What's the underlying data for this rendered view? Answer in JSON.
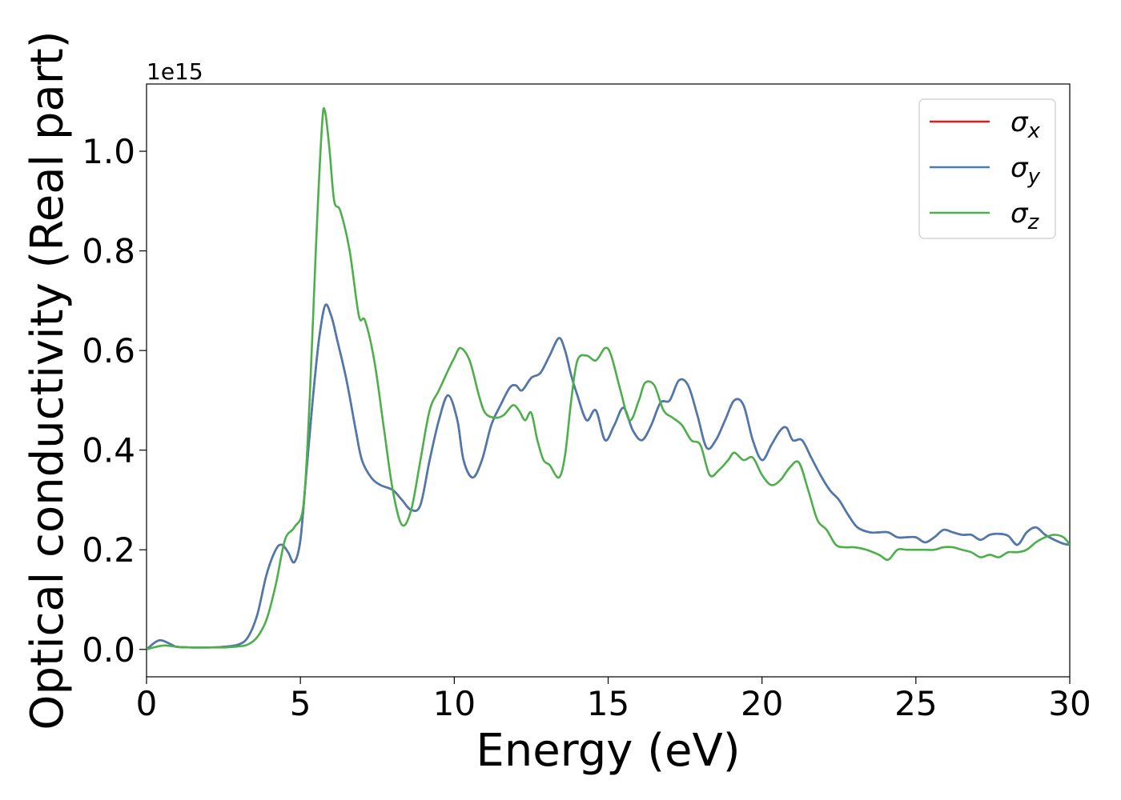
{
  "chart_data": {
    "type": "line",
    "title": "",
    "xlabel": "Energy (eV)",
    "ylabel": "Optical conductivity (Real part)",
    "y_offset_label": "1e15",
    "xlim": [
      0,
      30
    ],
    "ylim": [
      -0.055,
      1.135
    ],
    "x_ticks": [
      0,
      5,
      10,
      15,
      20,
      25,
      30
    ],
    "x_tick_labels": [
      "0",
      "5",
      "10",
      "15",
      "20",
      "25",
      "30"
    ],
    "y_ticks": [
      0.0,
      0.2,
      0.4,
      0.6,
      0.8,
      1.0
    ],
    "y_tick_labels": [
      "0.0",
      "0.2",
      "0.4",
      "0.6",
      "0.8",
      "1.0"
    ],
    "grid": false,
    "legend_position": "top-right",
    "series": [
      {
        "name": "σx",
        "legend_base": "σ",
        "legend_sub": "x",
        "color": "#e41a1c",
        "x": [
          0,
          0.3,
          0.5,
          0.8,
          1.0,
          1.5,
          2.0,
          2.5,
          3.0,
          3.3,
          3.6,
          3.9,
          4.2,
          4.4,
          4.6,
          4.8,
          5.0,
          5.2,
          5.4,
          5.6,
          5.8,
          6.0,
          6.2,
          6.5,
          6.8,
          7.0,
          7.3,
          7.6,
          8.0,
          8.3,
          8.6,
          8.9,
          9.2,
          9.5,
          9.8,
          10.1,
          10.3,
          10.6,
          10.9,
          11.2,
          11.5,
          11.8,
          12.0,
          12.2,
          12.5,
          12.8,
          13.1,
          13.4,
          13.6,
          13.8,
          14.0,
          14.3,
          14.6,
          14.9,
          15.2,
          15.5,
          15.8,
          16.1,
          16.4,
          16.7,
          17.0,
          17.3,
          17.6,
          17.9,
          18.2,
          18.5,
          18.8,
          19.1,
          19.4,
          19.7,
          20.0,
          20.3,
          20.6,
          20.8,
          21.0,
          21.3,
          21.6,
          21.9,
          22.2,
          22.5,
          22.8,
          23.1,
          23.5,
          23.8,
          24.1,
          24.4,
          24.7,
          25.0,
          25.3,
          25.6,
          25.9,
          26.2,
          26.5,
          26.8,
          27.1,
          27.4,
          27.7,
          28.0,
          28.3,
          28.6,
          28.9,
          29.2,
          29.5,
          29.8,
          30.0
        ],
        "y": [
          0.0,
          0.015,
          0.018,
          0.01,
          0.005,
          0.004,
          0.004,
          0.005,
          0.01,
          0.025,
          0.07,
          0.15,
          0.2,
          0.21,
          0.195,
          0.175,
          0.22,
          0.36,
          0.5,
          0.62,
          0.69,
          0.67,
          0.62,
          0.54,
          0.44,
          0.38,
          0.345,
          0.33,
          0.32,
          0.3,
          0.28,
          0.29,
          0.38,
          0.46,
          0.51,
          0.46,
          0.38,
          0.345,
          0.38,
          0.45,
          0.49,
          0.525,
          0.53,
          0.52,
          0.545,
          0.555,
          0.59,
          0.625,
          0.6,
          0.55,
          0.51,
          0.46,
          0.48,
          0.42,
          0.45,
          0.485,
          0.44,
          0.42,
          0.45,
          0.495,
          0.5,
          0.54,
          0.53,
          0.47,
          0.405,
          0.42,
          0.46,
          0.5,
          0.49,
          0.42,
          0.38,
          0.41,
          0.44,
          0.445,
          0.42,
          0.42,
          0.385,
          0.35,
          0.32,
          0.3,
          0.27,
          0.245,
          0.235,
          0.235,
          0.235,
          0.225,
          0.225,
          0.225,
          0.215,
          0.225,
          0.24,
          0.235,
          0.23,
          0.23,
          0.22,
          0.23,
          0.232,
          0.228,
          0.21,
          0.235,
          0.245,
          0.23,
          0.22,
          0.212,
          0.21
        ]
      },
      {
        "name": "σy",
        "legend_base": "σ",
        "legend_sub": "y",
        "color": "#4a7bb0",
        "x": [
          0,
          0.3,
          0.5,
          0.8,
          1.0,
          1.5,
          2.0,
          2.5,
          3.0,
          3.3,
          3.6,
          3.9,
          4.2,
          4.4,
          4.6,
          4.8,
          5.0,
          5.2,
          5.4,
          5.6,
          5.8,
          6.0,
          6.2,
          6.5,
          6.8,
          7.0,
          7.3,
          7.6,
          8.0,
          8.3,
          8.6,
          8.9,
          9.2,
          9.5,
          9.8,
          10.1,
          10.3,
          10.6,
          10.9,
          11.2,
          11.5,
          11.8,
          12.0,
          12.2,
          12.5,
          12.8,
          13.1,
          13.4,
          13.6,
          13.8,
          14.0,
          14.3,
          14.6,
          14.9,
          15.2,
          15.5,
          15.8,
          16.1,
          16.4,
          16.7,
          17.0,
          17.3,
          17.6,
          17.9,
          18.2,
          18.5,
          18.8,
          19.1,
          19.4,
          19.7,
          20.0,
          20.3,
          20.6,
          20.8,
          21.0,
          21.3,
          21.6,
          21.9,
          22.2,
          22.5,
          22.8,
          23.1,
          23.5,
          23.8,
          24.1,
          24.4,
          24.7,
          25.0,
          25.3,
          25.6,
          25.9,
          26.2,
          26.5,
          26.8,
          27.1,
          27.4,
          27.7,
          28.0,
          28.3,
          28.6,
          28.9,
          29.2,
          29.5,
          29.8,
          30.0
        ],
        "y": [
          0.0,
          0.015,
          0.018,
          0.01,
          0.005,
          0.004,
          0.004,
          0.005,
          0.01,
          0.025,
          0.07,
          0.15,
          0.2,
          0.21,
          0.195,
          0.175,
          0.22,
          0.36,
          0.5,
          0.62,
          0.69,
          0.67,
          0.62,
          0.54,
          0.44,
          0.38,
          0.345,
          0.33,
          0.32,
          0.3,
          0.28,
          0.29,
          0.38,
          0.46,
          0.51,
          0.46,
          0.38,
          0.345,
          0.38,
          0.45,
          0.49,
          0.525,
          0.53,
          0.52,
          0.545,
          0.555,
          0.59,
          0.625,
          0.6,
          0.55,
          0.51,
          0.46,
          0.48,
          0.42,
          0.45,
          0.485,
          0.44,
          0.42,
          0.45,
          0.495,
          0.5,
          0.54,
          0.53,
          0.47,
          0.405,
          0.42,
          0.46,
          0.5,
          0.49,
          0.42,
          0.38,
          0.41,
          0.44,
          0.445,
          0.42,
          0.42,
          0.385,
          0.35,
          0.32,
          0.3,
          0.27,
          0.245,
          0.235,
          0.235,
          0.235,
          0.225,
          0.225,
          0.225,
          0.215,
          0.225,
          0.24,
          0.235,
          0.23,
          0.23,
          0.22,
          0.23,
          0.232,
          0.228,
          0.21,
          0.235,
          0.245,
          0.23,
          0.22,
          0.212,
          0.21
        ]
      },
      {
        "name": "σz",
        "legend_base": "σ",
        "legend_sub": "z",
        "color": "#4daf4a",
        "x": [
          0,
          0.3,
          0.6,
          1.0,
          1.5,
          2.0,
          2.5,
          3.0,
          3.3,
          3.6,
          3.9,
          4.2,
          4.5,
          4.8,
          5.1,
          5.3,
          5.5,
          5.7,
          5.8,
          5.95,
          6.1,
          6.3,
          6.6,
          6.9,
          7.1,
          7.4,
          7.7,
          8.0,
          8.3,
          8.6,
          8.9,
          9.2,
          9.5,
          9.8,
          10.0,
          10.2,
          10.5,
          10.8,
          11.0,
          11.3,
          11.6,
          11.9,
          12.1,
          12.3,
          12.5,
          12.7,
          12.9,
          13.1,
          13.4,
          13.6,
          13.8,
          14.0,
          14.3,
          14.6,
          14.9,
          15.1,
          15.4,
          15.7,
          16.0,
          16.2,
          16.5,
          16.8,
          17.1,
          17.4,
          17.7,
          18.0,
          18.3,
          18.6,
          18.9,
          19.1,
          19.4,
          19.7,
          20.0,
          20.3,
          20.6,
          20.9,
          21.2,
          21.5,
          21.8,
          22.1,
          22.4,
          22.7,
          23.0,
          23.4,
          23.8,
          24.1,
          24.4,
          24.7,
          25.0,
          25.3,
          25.6,
          25.9,
          26.2,
          26.5,
          26.8,
          27.1,
          27.4,
          27.7,
          28.0,
          28.3,
          28.6,
          28.9,
          29.2,
          29.5,
          29.8,
          30.0
        ],
        "y": [
          0.0,
          0.005,
          0.008,
          0.005,
          0.004,
          0.004,
          0.004,
          0.006,
          0.01,
          0.025,
          0.06,
          0.13,
          0.22,
          0.245,
          0.29,
          0.5,
          0.8,
          1.05,
          1.08,
          1.0,
          0.9,
          0.88,
          0.8,
          0.67,
          0.66,
          0.58,
          0.45,
          0.32,
          0.25,
          0.28,
          0.38,
          0.48,
          0.52,
          0.56,
          0.585,
          0.605,
          0.58,
          0.51,
          0.475,
          0.465,
          0.47,
          0.49,
          0.48,
          0.46,
          0.475,
          0.42,
          0.38,
          0.37,
          0.345,
          0.39,
          0.5,
          0.58,
          0.59,
          0.58,
          0.605,
          0.59,
          0.52,
          0.46,
          0.5,
          0.535,
          0.53,
          0.48,
          0.465,
          0.45,
          0.42,
          0.41,
          0.35,
          0.36,
          0.38,
          0.395,
          0.38,
          0.385,
          0.35,
          0.33,
          0.34,
          0.365,
          0.375,
          0.32,
          0.26,
          0.24,
          0.21,
          0.205,
          0.205,
          0.2,
          0.19,
          0.18,
          0.2,
          0.2,
          0.2,
          0.2,
          0.2,
          0.205,
          0.205,
          0.2,
          0.195,
          0.185,
          0.19,
          0.185,
          0.195,
          0.195,
          0.2,
          0.215,
          0.225,
          0.23,
          0.225,
          0.21
        ]
      }
    ]
  }
}
